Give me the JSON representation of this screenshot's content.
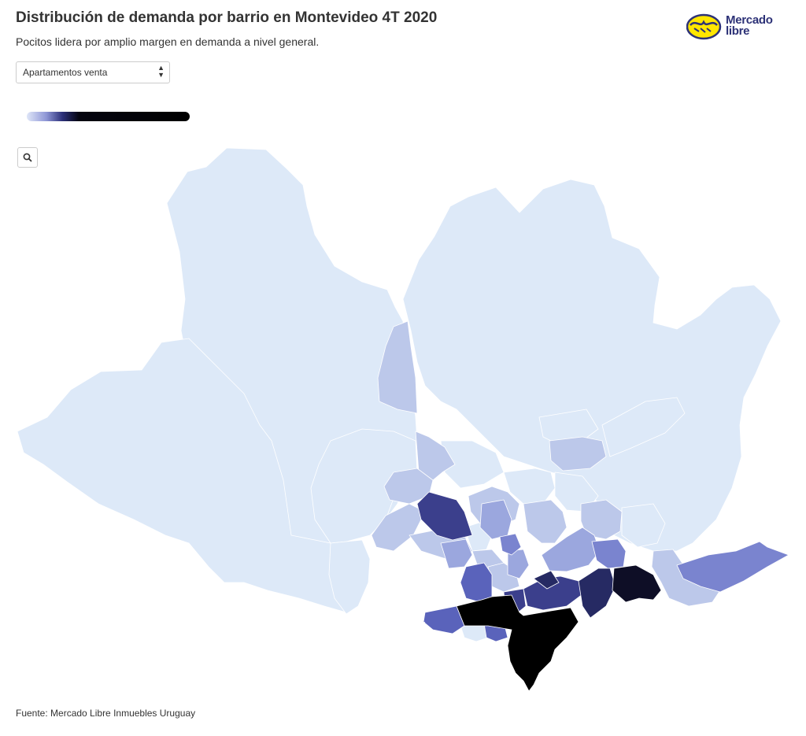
{
  "title": "Distribución de demanda por barrio en Montevideo 4T 2020",
  "subtitle": "Pocitos lidera por amplio margen en demanda a nivel general.",
  "logo": {
    "line1": "Mercado",
    "line2": "libre"
  },
  "dropdown": {
    "selected": "Apartamentos venta"
  },
  "legend": {
    "colors": [
      "#dfe6f8",
      "#8e96d6",
      "#2b2f78",
      "#000000"
    ]
  },
  "map": {
    "colors": {
      "level0": "#dde9f8",
      "level1": "#bcc8ea",
      "level2": "#9ba7de",
      "level3": "#7a84cf",
      "level4": "#5a63bb",
      "level5": "#3b3f8c",
      "level6": "#262a63",
      "level7": "#0e0e26",
      "level8": "#000000"
    }
  },
  "zoom": {
    "icon": "search-icon"
  },
  "source": "Fuente: Mercado Libre Inmuebles Uruguay"
}
